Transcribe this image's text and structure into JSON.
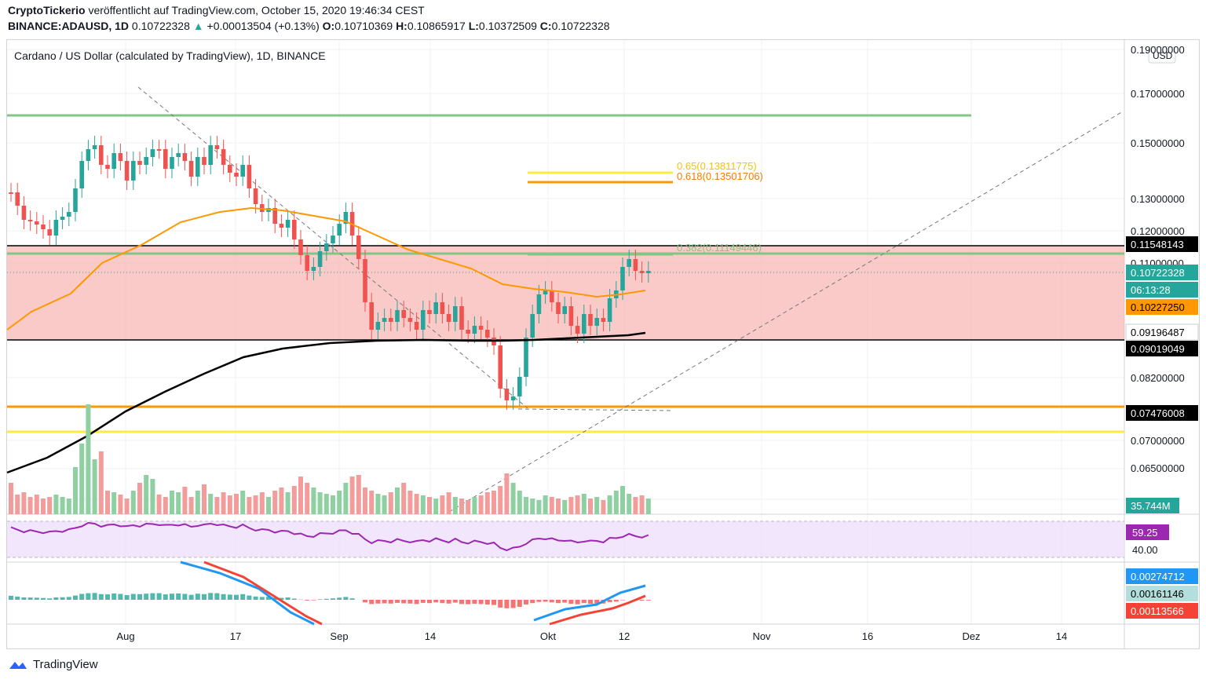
{
  "header": {
    "author": "CryptoTickerio",
    "published": "veröffentlicht auf TradingView.com, October 15, 2020 19:46:34 CEST",
    "symbol": "BINANCE:ADAUSD, 1D",
    "last": "0.10722328",
    "change_arrow": "▲",
    "change": "+0.00013504 (+0.13%)",
    "o_label": "O:",
    "o": "0.10710369",
    "h_label": "H:",
    "h": "0.10865917",
    "l_label": "L:",
    "l": "0.10372509",
    "c_label": "C:",
    "c": "0.10722328"
  },
  "chart_title": "Cardano / US Dollar (calculated by TradingView), 1D, BINANCE",
  "currency_button": "USD",
  "footer_brand": "TradingView",
  "chart_data": {
    "type": "candlestick",
    "title": "Cardano / US Dollar (calculated by TradingView), 1D, BINANCE",
    "y_ticks": [
      "0.19000000",
      "0.17000000",
      "0.15000000",
      "0.13000000",
      "0.12000000",
      "0.11000000",
      "0.08200000",
      "0.07000000",
      "0.06500000"
    ],
    "x_ticks": [
      "Aug",
      "17",
      "Sep",
      "14",
      "Okt",
      "12",
      "Nov",
      "16",
      "Dez",
      "14"
    ],
    "price_labels": [
      {
        "text": "0.11548143",
        "bg": "#000000",
        "fg": "#ffffff"
      },
      {
        "text": "0.10722328",
        "bg": "#26a69a",
        "fg": "#ffffff"
      },
      {
        "text": "06:13:28",
        "bg": "#26a69a",
        "fg": "#ffffff"
      },
      {
        "text": "0.10227250",
        "bg": "#ff9800",
        "fg": "#000000"
      },
      {
        "text": "0.09196487",
        "bg": "#ffffff",
        "fg": "#000000"
      },
      {
        "text": "0.09019049",
        "bg": "#000000",
        "fg": "#ffffff"
      },
      {
        "text": "0.07476008",
        "bg": "#000000",
        "fg": "#ffffff"
      }
    ],
    "fib_labels": [
      {
        "text": "0.65(0.13811775)",
        "color": "#f5c400"
      },
      {
        "text": "0.618(0.13501706)",
        "color": "#f57c00"
      },
      {
        "text": "0.382(0.11149446)",
        "color": "#81c784"
      }
    ],
    "volume_label": "35.744M",
    "rsi": {
      "value": "59.25",
      "level": "40.00"
    },
    "macd": {
      "macd": "0.00274712",
      "hist": "0.00161146",
      "signal": "0.00113566"
    },
    "colors": {
      "up": "#26a69a",
      "down": "#ef5350",
      "ma50": "#ff9800",
      "ma200": "#000000",
      "zone": "#f8b8b6",
      "rsi": "#9c27b0",
      "macd_line": "#2196f3",
      "signal_line": "#f44336"
    }
  }
}
